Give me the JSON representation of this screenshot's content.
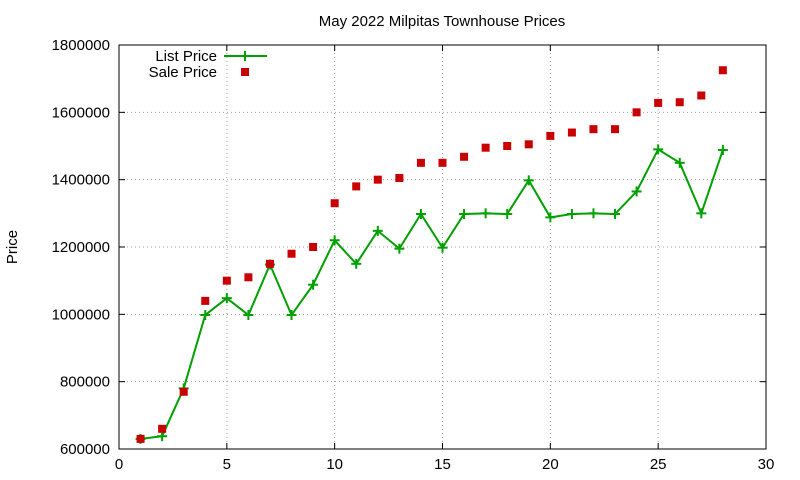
{
  "chart_data": {
    "type": "line",
    "title": "May 2022 Milpitas Townhouse Prices",
    "xlabel": "",
    "ylabel": "Price",
    "xlim": [
      0,
      30
    ],
    "ylim": [
      600000,
      1800000
    ],
    "x_ticks": [
      0,
      5,
      10,
      15,
      20,
      25,
      30
    ],
    "y_ticks": [
      600000,
      800000,
      1000000,
      1200000,
      1400000,
      1600000,
      1800000
    ],
    "grid": true,
    "legend_position": "top-left",
    "x": [
      1,
      2,
      3,
      4,
      5,
      6,
      7,
      8,
      9,
      10,
      11,
      12,
      13,
      14,
      15,
      16,
      17,
      18,
      19,
      20,
      21,
      22,
      23,
      24,
      25,
      26,
      27,
      28
    ],
    "series": [
      {
        "name": "List Price",
        "style": "line+cross",
        "color": "#00a000",
        "values": [
          630000,
          638000,
          780000,
          998000,
          1048000,
          998000,
          1148000,
          998000,
          1088000,
          1220000,
          1150000,
          1248000,
          1195000,
          1298000,
          1198000,
          1298000,
          1300000,
          1298000,
          1398000,
          1288000,
          1298000,
          1300000,
          1298000,
          1365000,
          1490000,
          1450000,
          1300000,
          1488000
        ]
      },
      {
        "name": "Sale Price",
        "style": "square",
        "color": "#c80000",
        "values": [
          630000,
          660000,
          770000,
          1040000,
          1100000,
          1110000,
          1150000,
          1180000,
          1200000,
          1330000,
          1380000,
          1400000,
          1405000,
          1450000,
          1450000,
          1468000,
          1495000,
          1500000,
          1505000,
          1530000,
          1540000,
          1550000,
          1550000,
          1600000,
          1628000,
          1630000,
          1650000,
          1725000
        ]
      }
    ]
  }
}
